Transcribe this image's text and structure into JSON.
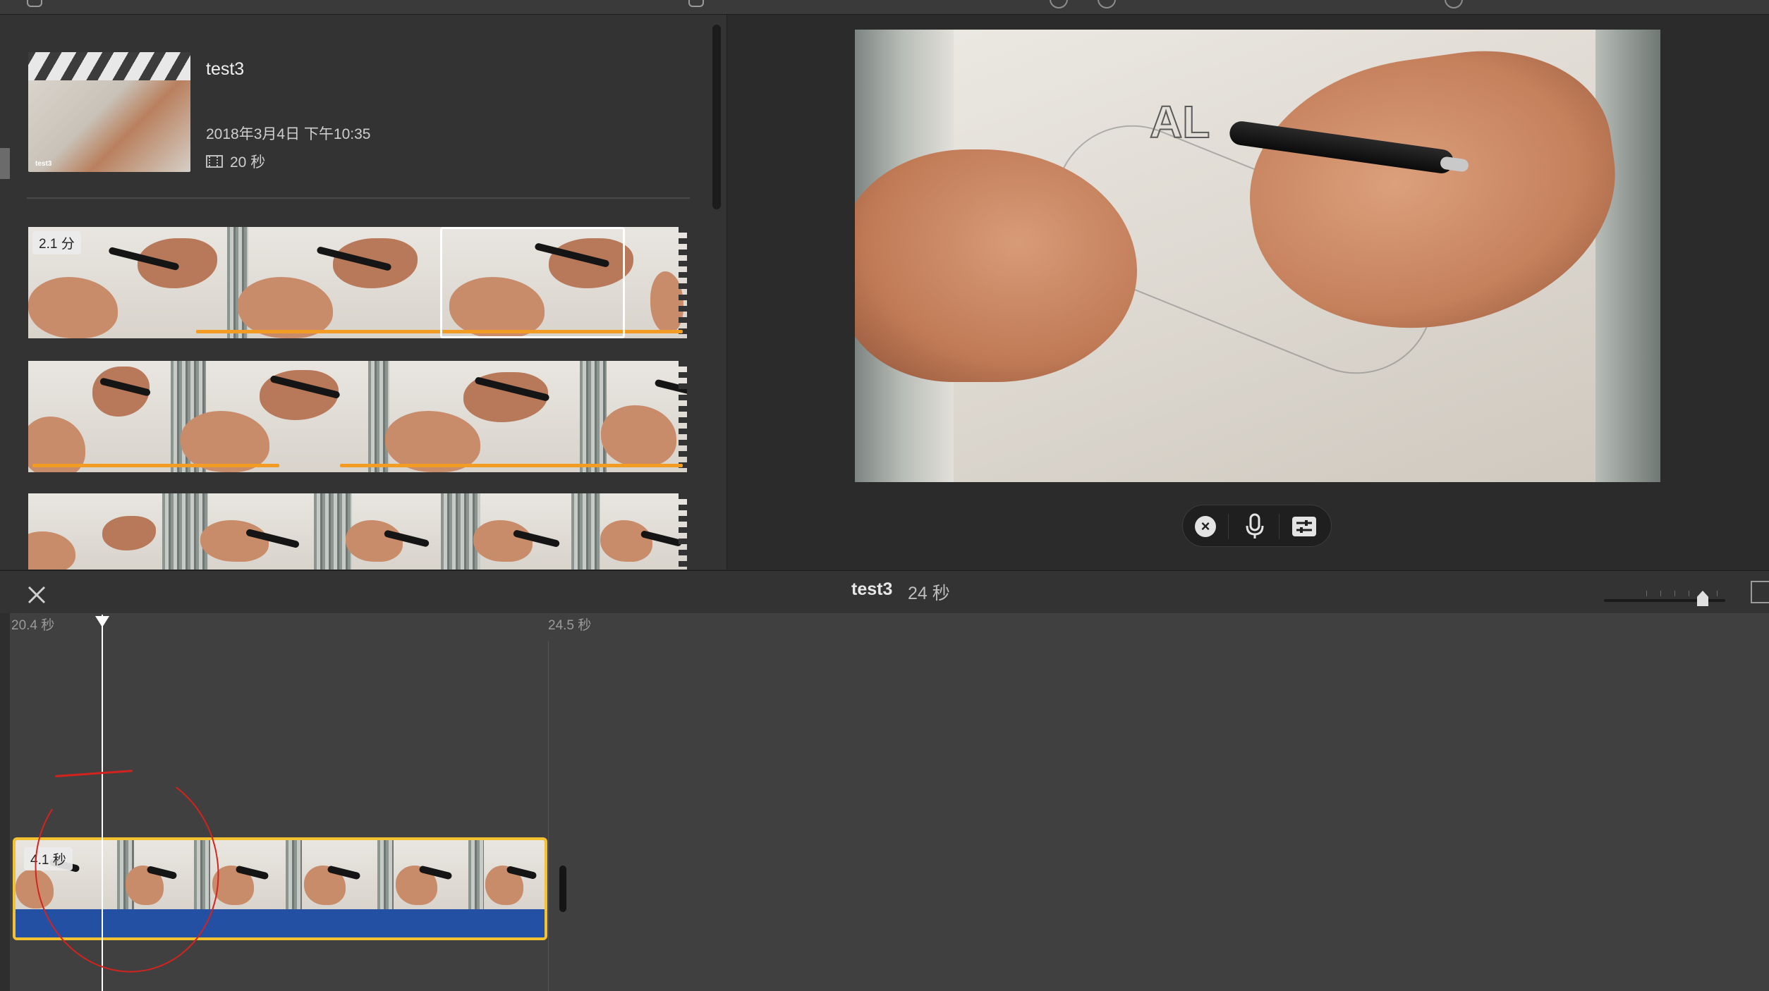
{
  "toolbar": {
    "partial_labels": [
      "",
      "",
      "",
      "",
      "",
      "",
      ""
    ],
    "right_label": ""
  },
  "event": {
    "title": "test3",
    "thumb_caption": "test3",
    "date": "2018年3月4日 下午10:35",
    "duration": "20 秒"
  },
  "browser": {
    "strips": [
      {
        "badge": "2.1 分"
      },
      {
        "badge": ""
      },
      {
        "badge": ""
      }
    ]
  },
  "viewer": {
    "video_overlay_text": "AL",
    "voiceover": {
      "cancel_icon": "x-circle-icon",
      "mic_icon": "microphone-icon",
      "options_icon": "sliders-icon"
    }
  },
  "timeline": {
    "project_title": "test3",
    "project_duration": "24 秒",
    "time_labels": [
      "20.4 秒",
      "24.5 秒"
    ],
    "clip_duration": "4.1 秒",
    "zoom_level": 0.8
  },
  "colors": {
    "selection_yellow": "#f2c230",
    "favorite_orange": "#f39c23",
    "audio_blue": "#2450a3",
    "annotation_red": "#d3231e"
  }
}
